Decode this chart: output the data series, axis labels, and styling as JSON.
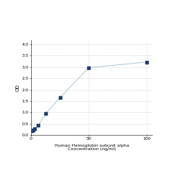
{
  "x": [
    0.781,
    1.563,
    3.125,
    6.25,
    12.5,
    25,
    50,
    100
  ],
  "y": [
    0.179,
    0.212,
    0.279,
    0.418,
    0.938,
    1.651,
    2.971,
    3.215
  ],
  "line_color": "#a8c4d8",
  "marker_color": "#1f3f6e",
  "marker_size": 3,
  "xlabel_line1": "Human Hemoglobin subunit alpha",
  "xlabel_line2": "Concentration (ng/ml)",
  "ylabel": "OD",
  "xlim": [
    0,
    105
  ],
  "ylim": [
    0,
    4.2
  ],
  "xticks": [
    0,
    50,
    100
  ],
  "yticks": [
    0,
    0.5,
    1.0,
    1.5,
    2.0,
    2.5,
    3.0,
    3.5,
    4.0
  ],
  "grid_color": "#d0d0d0",
  "grid_linestyle": "--",
  "background_color": "#ffffff",
  "xlabel_fontsize": 4.5,
  "ylabel_fontsize": 5,
  "tick_fontsize": 4.5,
  "linewidth": 0.7
}
